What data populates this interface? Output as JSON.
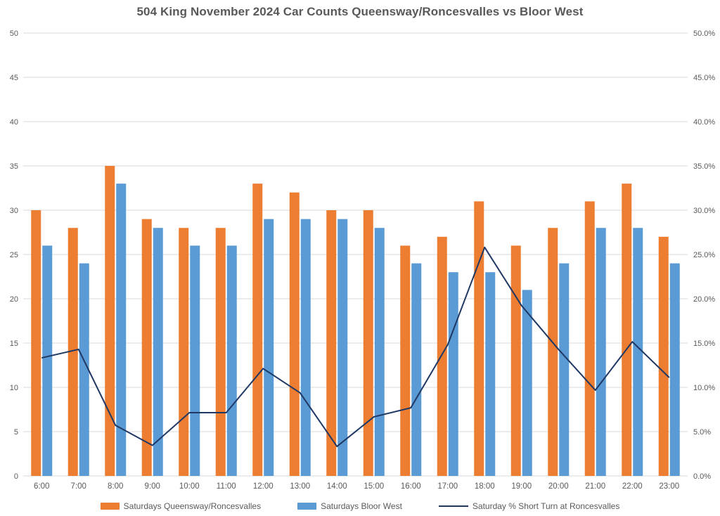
{
  "title": "504 King November 2024 Car Counts Queensway/Roncesvalles vs Bloor West",
  "colors": {
    "bar_orange": "#ED7D31",
    "bar_blue": "#5B9BD5",
    "line_navy": "#1F3864",
    "gridline": "#D9D9D9",
    "axis_line": "#D9D9D9",
    "axis_text": "#595959",
    "title_text": "#595959",
    "background": "#FFFFFF"
  },
  "chart_data": {
    "type": "bar",
    "subtype": "grouped-bars-with-line-overlay",
    "title": "504 King November 2024 Car Counts Queensway/Roncesvalles vs Bloor West",
    "categories": [
      "6:00",
      "7:00",
      "8:00",
      "9:00",
      "10:00",
      "11:00",
      "12:00",
      "13:00",
      "14:00",
      "15:00",
      "16:00",
      "17:00",
      "18:00",
      "19:00",
      "20:00",
      "21:00",
      "22:00",
      "23:00"
    ],
    "series": [
      {
        "name": "Saturdays Queensway/Roncesvalles",
        "type": "bar",
        "axis": "left",
        "color": "#ED7D31",
        "values": [
          30,
          28,
          35,
          29,
          28,
          28,
          33,
          32,
          30,
          30,
          26,
          27,
          31,
          26,
          28,
          31,
          33,
          27
        ]
      },
      {
        "name": "Saturdays Bloor West",
        "type": "bar",
        "axis": "left",
        "color": "#5B9BD5",
        "values": [
          26,
          24,
          33,
          28,
          26,
          26,
          29,
          29,
          29,
          28,
          24,
          23,
          23,
          21,
          24,
          28,
          28,
          24
        ]
      },
      {
        "name": "Saturday % Short Turn at Roncesvalles",
        "type": "line",
        "axis": "right",
        "color": "#1F3864",
        "values": [
          13.33,
          14.29,
          5.71,
          3.45,
          7.14,
          7.14,
          12.12,
          9.38,
          3.33,
          6.67,
          7.69,
          14.81,
          25.81,
          19.23,
          14.29,
          9.68,
          15.15,
          11.11
        ]
      }
    ],
    "left_axis": {
      "min": 0,
      "max": 50,
      "step": 5,
      "tick_labels": [
        "0",
        "5",
        "10",
        "15",
        "20",
        "25",
        "30",
        "35",
        "40",
        "45",
        "50"
      ]
    },
    "right_axis": {
      "min": 0,
      "max": 50,
      "step": 5,
      "tick_labels": [
        "0.0%",
        "5.0%",
        "10.0%",
        "15.0%",
        "20.0%",
        "25.0%",
        "30.0%",
        "35.0%",
        "40.0%",
        "45.0%",
        "50.0%"
      ]
    },
    "xlabel": "",
    "ylabel": "",
    "grid": true,
    "legend_position": "bottom"
  }
}
